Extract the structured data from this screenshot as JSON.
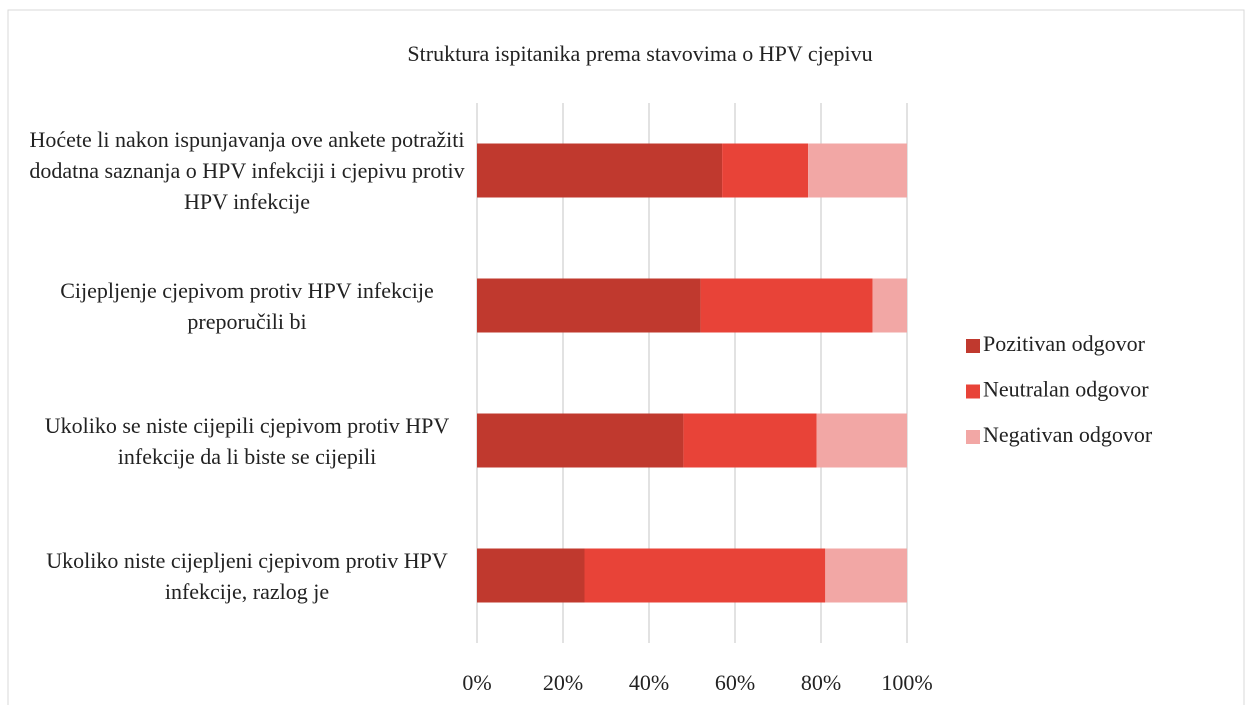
{
  "chart_data": {
    "type": "stacked_bar_horizontal",
    "title": "Struktura ispitanika prema stavovima o HPV cjepivu",
    "categories": [
      "Hoćete li nakon ispunjavanja ove ankete potražiti dodatna saznanja o HPV infekciji i cjepivu protiv  HPV infekcije",
      "Cijepljenje cjepivom protiv HPV infekcije preporučili bi",
      "Ukoliko se niste cijepili cjepivom protiv HPV infekcije da li biste se cijepili",
      "Ukoliko niste cijepljeni cjepivom protiv HPV infekcije, razlog je"
    ],
    "series": [
      {
        "name": "Pozitivan odgovor",
        "color": "#c0392e",
        "values": [
          57,
          52,
          48,
          25
        ]
      },
      {
        "name": "Neutralan odgovor",
        "color": "#e84338",
        "values": [
          20,
          40,
          31,
          56
        ]
      },
      {
        "name": "Negativan odgovor",
        "color": "#f2a7a5",
        "values": [
          23,
          8,
          21,
          19
        ]
      }
    ],
    "xlim": [
      0,
      100
    ],
    "xticks": [
      {
        "value": 0,
        "label": "0%"
      },
      {
        "value": 20,
        "label": "20%"
      },
      {
        "value": 40,
        "label": "40%"
      },
      {
        "value": 60,
        "label": "60%"
      },
      {
        "value": 80,
        "label": "80%"
      },
      {
        "value": 100,
        "label": "100%"
      }
    ],
    "grid": true,
    "legend": "right"
  }
}
